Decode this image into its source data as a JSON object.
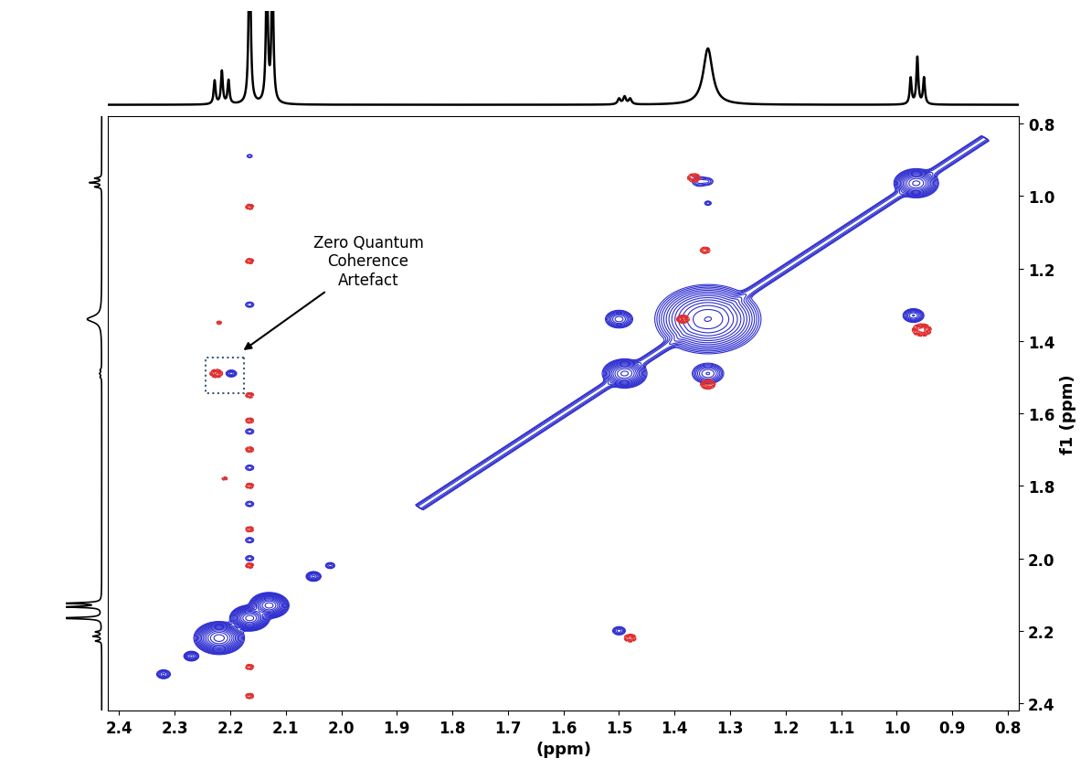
{
  "chart_data": {
    "type": "contour",
    "xlabel": "(ppm)",
    "ylabel": "f1 (ppm)",
    "xlim": [
      2.42,
      0.78
    ],
    "ylim": [
      2.42,
      0.78
    ],
    "xticks": [
      2.4,
      2.3,
      2.2,
      2.1,
      2.0,
      1.9,
      1.8,
      1.7,
      1.6,
      1.5,
      1.4,
      1.3,
      1.2,
      1.1,
      1.0,
      0.9,
      0.8
    ],
    "yticks": [
      0.8,
      1.0,
      1.2,
      1.4,
      1.6,
      1.8,
      2.0,
      2.2,
      2.4
    ],
    "annotation": {
      "text": "Zero Quantum\nCoherence\nArtefact",
      "x": 2.18,
      "y": 1.43
    },
    "series": [
      {
        "color": "#2d2dd0",
        "ridges": [
          {
            "from": 0.84,
            "to": 1.86,
            "amplitude": 0.2,
            "width": 0.006
          }
        ],
        "peaks": [
          {
            "x": 2.22,
            "y": 2.22,
            "amplitude": 10,
            "width": 0.014
          },
          {
            "x": 2.165,
            "y": 2.165,
            "amplitude": 10,
            "width": 0.011
          },
          {
            "x": 2.13,
            "y": 2.13,
            "amplitude": 10,
            "width": 0.011
          },
          {
            "x": 1.49,
            "y": 1.49,
            "amplitude": 6,
            "width": 0.013
          },
          {
            "x": 1.34,
            "y": 1.34,
            "amplitude": 8,
            "width": 0.03
          },
          {
            "x": 0.965,
            "y": 0.965,
            "amplitude": 6,
            "width": 0.013
          },
          {
            "x": 2.27,
            "y": 2.27,
            "amplitude": 0.6,
            "width": 0.006
          },
          {
            "x": 2.32,
            "y": 2.32,
            "amplitude": 0.4,
            "width": 0.006
          },
          {
            "x": 2.05,
            "y": 2.05,
            "amplitude": 0.6,
            "width": 0.006
          },
          {
            "x": 2.02,
            "y": 2.02,
            "amplitude": 0.2,
            "width": 0.005
          },
          {
            "x": 1.5,
            "y": 1.34,
            "amplitude": 1.0,
            "width": 0.01
          },
          {
            "x": 1.34,
            "y": 1.49,
            "amplitude": 0.8,
            "width": 0.012
          },
          {
            "x": 0.97,
            "y": 1.33,
            "amplitude": 0.8,
            "width": 0.008
          },
          {
            "x": 1.355,
            "y": 0.96,
            "amplitude": 0.2,
            "width": 0.008
          },
          {
            "x": 2.198,
            "y": 1.49,
            "amplitude": 0.3,
            "width": 0.005
          },
          {
            "x": 1.5,
            "y": 2.2,
            "amplitude": 0.3,
            "width": 0.006
          },
          {
            "x": 2.165,
            "y": 2.0,
            "amplitude": 0.15,
            "width": 0.005
          },
          {
            "x": 2.165,
            "y": 1.95,
            "amplitude": 0.15,
            "width": 0.005
          },
          {
            "x": 2.165,
            "y": 1.85,
            "amplitude": 0.15,
            "width": 0.005
          },
          {
            "x": 2.165,
            "y": 1.75,
            "amplitude": 0.15,
            "width": 0.005
          },
          {
            "x": 2.165,
            "y": 1.65,
            "amplitude": 0.15,
            "width": 0.005
          },
          {
            "x": 2.165,
            "y": 1.3,
            "amplitude": 0.15,
            "width": 0.005
          },
          {
            "x": 2.165,
            "y": 0.89,
            "amplitude": 0.1,
            "width": 0.004
          },
          {
            "x": 1.34,
            "y": 1.02,
            "amplitude": 0.15,
            "width": 0.004
          },
          {
            "x": 1.34,
            "y": 0.96,
            "amplitude": 0.15,
            "width": 0.006
          }
        ]
      },
      {
        "color": "#e03030",
        "peaks": [
          {
            "x": 2.225,
            "y": 1.49,
            "amplitude": -0.3,
            "width": 0.006
          },
          {
            "x": 1.48,
            "y": 2.22,
            "amplitude": -0.25,
            "width": 0.006
          },
          {
            "x": 0.955,
            "y": 1.37,
            "amplitude": -0.5,
            "width": 0.008
          },
          {
            "x": 1.34,
            "y": 1.52,
            "amplitude": -0.3,
            "width": 0.007
          },
          {
            "x": 1.385,
            "y": 1.34,
            "amplitude": -0.3,
            "width": 0.006
          },
          {
            "x": 1.365,
            "y": 0.95,
            "amplitude": -0.2,
            "width": 0.007
          },
          {
            "x": 1.345,
            "y": 1.15,
            "amplitude": -0.15,
            "width": 0.006
          },
          {
            "x": 2.165,
            "y": 1.03,
            "amplitude": -0.15,
            "width": 0.005
          },
          {
            "x": 2.165,
            "y": 1.18,
            "amplitude": -0.15,
            "width": 0.005
          },
          {
            "x": 2.165,
            "y": 1.55,
            "amplitude": -0.15,
            "width": 0.005
          },
          {
            "x": 2.165,
            "y": 1.62,
            "amplitude": -0.15,
            "width": 0.005
          },
          {
            "x": 2.165,
            "y": 1.7,
            "amplitude": -0.15,
            "width": 0.005
          },
          {
            "x": 2.165,
            "y": 1.8,
            "amplitude": -0.15,
            "width": 0.005
          },
          {
            "x": 2.165,
            "y": 1.92,
            "amplitude": -0.15,
            "width": 0.005
          },
          {
            "x": 2.165,
            "y": 2.02,
            "amplitude": -0.15,
            "width": 0.005
          },
          {
            "x": 2.165,
            "y": 2.3,
            "amplitude": -0.15,
            "width": 0.005
          },
          {
            "x": 2.165,
            "y": 2.38,
            "amplitude": -0.15,
            "width": 0.005
          },
          {
            "x": 2.21,
            "y": 1.78,
            "amplitude": -0.1,
            "width": 0.004
          },
          {
            "x": 2.22,
            "y": 1.35,
            "amplitude": -0.1,
            "width": 0.004
          }
        ]
      }
    ],
    "projection_ylim": [
      -0.08,
      1.0
    ],
    "projection": [
      {
        "x": 2.228,
        "height": 0.25,
        "width": 0.002
      },
      {
        "x": 2.215,
        "height": 0.35,
        "width": 0.002
      },
      {
        "x": 2.203,
        "height": 0.25,
        "width": 0.002
      },
      {
        "x": 2.165,
        "height": 2.0,
        "width": 0.002
      },
      {
        "x": 2.134,
        "height": 1.5,
        "width": 0.002
      },
      {
        "x": 2.124,
        "height": 1.5,
        "width": 0.002
      },
      {
        "x": 1.5,
        "height": 0.06,
        "width": 0.003
      },
      {
        "x": 1.49,
        "height": 0.08,
        "width": 0.003
      },
      {
        "x": 1.48,
        "height": 0.06,
        "width": 0.003
      },
      {
        "x": 1.34,
        "height": 0.6,
        "width": 0.01
      },
      {
        "x": 0.975,
        "height": 0.28,
        "width": 0.002
      },
      {
        "x": 0.963,
        "height": 0.5,
        "width": 0.002
      },
      {
        "x": 0.951,
        "height": 0.28,
        "width": 0.002
      }
    ]
  }
}
